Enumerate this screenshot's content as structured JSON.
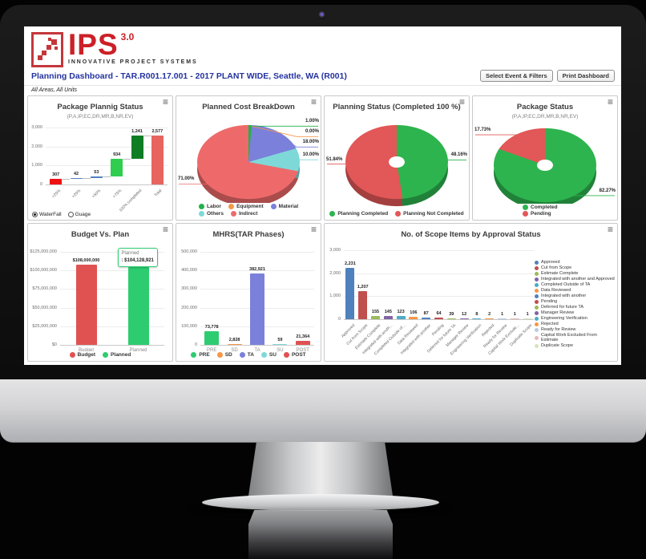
{
  "brand": {
    "name": "IPS",
    "version": "3.0",
    "tagline": "INNOVATIVE PROJECT SYSTEMS",
    "accent_color": "#cc2027"
  },
  "header": {
    "title": "Planning Dashboard - TAR.R001.17.001 - 2017 PLANT WIDE, Seattle, WA (R001)",
    "select_button": "Select Event & Filters",
    "print_button": "Print Dashboard",
    "filters_note": "All Areas, All Units"
  },
  "chart_data": [
    {
      "type": "waterfall",
      "title": "Package Plannig Status",
      "subtitle": "(P,A,IP,EC,DR,MR,B,NR,EV)",
      "categories": [
        "<25%",
        ">25%",
        ">50%",
        ">75%",
        "100% completed",
        "Total"
      ],
      "values": [
        307,
        42,
        53,
        934,
        1241,
        2577
      ],
      "value_labels": [
        "307",
        "42",
        "53",
        "934",
        "1,241",
        "2,577"
      ],
      "segments": [
        [
          0,
          307
        ],
        [
          307,
          349
        ],
        [
          349,
          402
        ],
        [
          402,
          1336
        ],
        [
          1336,
          2577
        ],
        [
          0,
          2577
        ]
      ],
      "colors": [
        "#ee1111",
        "#4f81bd",
        "#4f81bd",
        "#2fce4f",
        "#0f7d24",
        "#e8645f"
      ],
      "ylim": [
        0,
        3000
      ],
      "yticks": [
        {
          "v": 0,
          "label": "0"
        },
        {
          "v": 1000,
          "label": "1,000"
        },
        {
          "v": 2000,
          "label": "2,000"
        },
        {
          "v": 3000,
          "label": "3,000"
        }
      ],
      "rotate_xlabels": true,
      "controls": [
        {
          "label": "WaterFall",
          "checked": true
        },
        {
          "label": "Guage",
          "checked": false
        }
      ]
    },
    {
      "type": "pie",
      "title": "Planned Cost BreakDown",
      "slices": [
        {
          "label": "Labor",
          "pct": 1.0,
          "display": "1.00%",
          "color": "#22b14c"
        },
        {
          "label": "Equipment",
          "pct": 0.0,
          "display": "0.00%",
          "color": "#f79646"
        },
        {
          "label": "Material",
          "pct": 18.0,
          "display": "18.00%",
          "color": "#7b80da"
        },
        {
          "label": "Others",
          "pct": 10.0,
          "display": "10.00%",
          "color": "#7fd8d8"
        },
        {
          "label": "Indirect",
          "pct": 71.0,
          "display": "71.00%",
          "color": "#ee6a6a"
        }
      ]
    },
    {
      "type": "pie",
      "donut": true,
      "title": "Planning Status (Completed 100 %)",
      "slices": [
        {
          "label": "Planning Completed",
          "pct": 48.16,
          "display": "48.16%",
          "color": "#2db44e"
        },
        {
          "label": "Planning Not Completed",
          "pct": 51.84,
          "display": "51.84%",
          "color": "#e25757"
        }
      ]
    },
    {
      "type": "pie",
      "donut": true,
      "title": "Package Status",
      "subtitle": "(P,A,IP,EC,DR,MR,B,NR,EV)",
      "slices": [
        {
          "label": "Completed",
          "pct": 82.27,
          "display": "82.27%",
          "color": "#2db44e"
        },
        {
          "label": "Pending",
          "pct": 17.73,
          "display": "17.73%",
          "color": "#e25757"
        }
      ]
    },
    {
      "type": "bar",
      "title": "Budget Vs. Plan",
      "categories": [
        "Budget",
        "Planned"
      ],
      "values": [
        108000000,
        104128921
      ],
      "value_labels": [
        "$108,000,000",
        ""
      ],
      "colors": [
        "#e05252",
        "#2ecc71"
      ],
      "ylim": [
        0,
        125000000
      ],
      "yticks": [
        {
          "v": 0,
          "label": "$0"
        },
        {
          "v": 25000000,
          "label": "$25,000,000"
        },
        {
          "v": 50000000,
          "label": "$50,000,000"
        },
        {
          "v": 75000000,
          "label": "$75,000,000"
        },
        {
          "v": 100000000,
          "label": "$100,000,000"
        },
        {
          "v": 125000000,
          "label": "$125,000,000"
        }
      ],
      "tooltip": {
        "bar_index": 1,
        "title": "Planned",
        "value": ": $104,128,921"
      },
      "legend": [
        {
          "label": "Budget",
          "color": "#e05252"
        },
        {
          "label": "Planned",
          "color": "#2ecc71"
        }
      ]
    },
    {
      "type": "bar",
      "title": "MHRS(TAR Phases)",
      "categories": [
        "PRE",
        "SD",
        "TA",
        "SU",
        "POST"
      ],
      "values": [
        73778,
        2828,
        382921,
        59,
        21364
      ],
      "value_labels": [
        "73,778",
        "2,828",
        "382,921",
        "59",
        "21,364"
      ],
      "colors": [
        "#2ecc71",
        "#f79646",
        "#7b80da",
        "#7fd8d8",
        "#e05252"
      ],
      "ylim": [
        0,
        500000
      ],
      "yticks": [
        {
          "v": 0,
          "label": "0"
        },
        {
          "v": 100000,
          "label": "100,000"
        },
        {
          "v": 200000,
          "label": "200,000"
        },
        {
          "v": 300000,
          "label": "300,000"
        },
        {
          "v": 400000,
          "label": "400,000"
        },
        {
          "v": 500000,
          "label": "500,000"
        }
      ],
      "legend": [
        {
          "label": "PRE",
          "color": "#2ecc71"
        },
        {
          "label": "SD",
          "color": "#f79646"
        },
        {
          "label": "TA",
          "color": "#7b80da"
        },
        {
          "label": "SU",
          "color": "#7fd8d8"
        },
        {
          "label": "POST",
          "color": "#e05252"
        }
      ]
    },
    {
      "type": "bar",
      "title": "No. of Scope Items by Approval Status",
      "categories": [
        "Approved",
        "Cut from Scope",
        "Estimate Complete",
        "Integrated with anoth...",
        "Completed Outside of...",
        "Data Reviewed",
        "Integrated with another",
        "Pending",
        "Deferred for future TA",
        "Manager Review",
        "Engineering Verification",
        "Rejected",
        "Ready for Review",
        "Capital Work Exclude...",
        "Duplicate Scope"
      ],
      "values": [
        2231,
        1207,
        155,
        145,
        123,
        106,
        87,
        64,
        39,
        12,
        8,
        2,
        1,
        1,
        1
      ],
      "value_labels": [
        "2,231",
        "1,207",
        "155",
        "145",
        "123",
        "106",
        "87",
        "64",
        "39",
        "12",
        "8",
        "2",
        "1",
        "1",
        "1"
      ],
      "colors": [
        "#4f81bd",
        "#c0504d",
        "#9bbb59",
        "#8064a2",
        "#4bacc6",
        "#f79646",
        "#4f81bd",
        "#c0504d",
        "#9bbb59",
        "#8064a2",
        "#4bacc6",
        "#f79646",
        "#b8cce4",
        "#e6b9b8",
        "#d7e4bd"
      ],
      "ylim": [
        0,
        3000
      ],
      "yticks": [
        {
          "v": 0,
          "label": "0"
        },
        {
          "v": 1000,
          "label": "1,000"
        },
        {
          "v": 2000,
          "label": "2,000"
        },
        {
          "v": 3000,
          "label": "3,000"
        }
      ],
      "rotate_xlabels": true,
      "legend_right": [
        {
          "label": "Approved",
          "color": "#4f81bd"
        },
        {
          "label": "Cut from Scope",
          "color": "#c0504d"
        },
        {
          "label": "Estimate Complete",
          "color": "#9bbb59"
        },
        {
          "label": "Integrated with another and Approved",
          "color": "#8064a2"
        },
        {
          "label": "Completed Outside of TA",
          "color": "#4bacc6"
        },
        {
          "label": "Data Reviewed",
          "color": "#f79646"
        },
        {
          "label": "Integrated with another",
          "color": "#4f81bd"
        },
        {
          "label": "Pending",
          "color": "#c0504d"
        },
        {
          "label": "Deferred for future TA",
          "color": "#9bbb59"
        },
        {
          "label": "Manager Review",
          "color": "#8064a2"
        },
        {
          "label": "Engineering Verification",
          "color": "#4bacc6"
        },
        {
          "label": "Rejected",
          "color": "#f79646"
        },
        {
          "label": "Ready for Review",
          "color": "#b8cce4"
        },
        {
          "label": "Capital Work Excluded From Estimate",
          "color": "#e6b9b8"
        },
        {
          "label": "Duplicate Scope",
          "color": "#d7e4bd"
        }
      ]
    }
  ]
}
